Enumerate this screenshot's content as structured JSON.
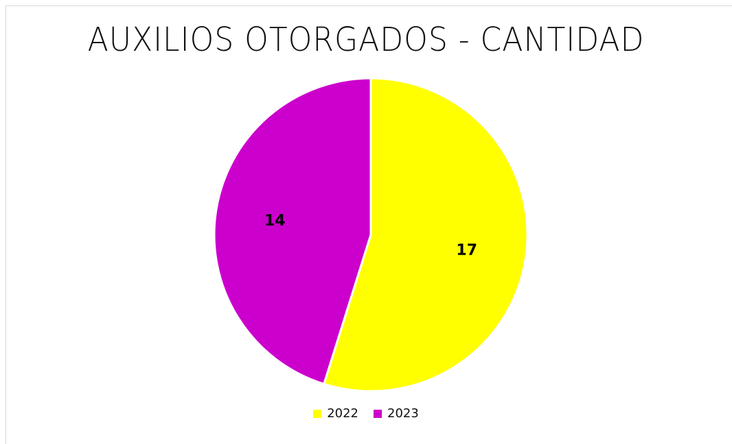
{
  "chart_data": {
    "type": "pie",
    "title": "AUXILIOS OTORGADOS - CANTIDAD",
    "categories": [
      "2022",
      "2023"
    ],
    "values": [
      17,
      14
    ],
    "data_labels": [
      "17",
      "14"
    ],
    "colors": [
      "#ffff00",
      "#cc00cc"
    ],
    "legend": {
      "placement": "bottom",
      "entries": [
        "2022",
        "2023"
      ]
    }
  }
}
